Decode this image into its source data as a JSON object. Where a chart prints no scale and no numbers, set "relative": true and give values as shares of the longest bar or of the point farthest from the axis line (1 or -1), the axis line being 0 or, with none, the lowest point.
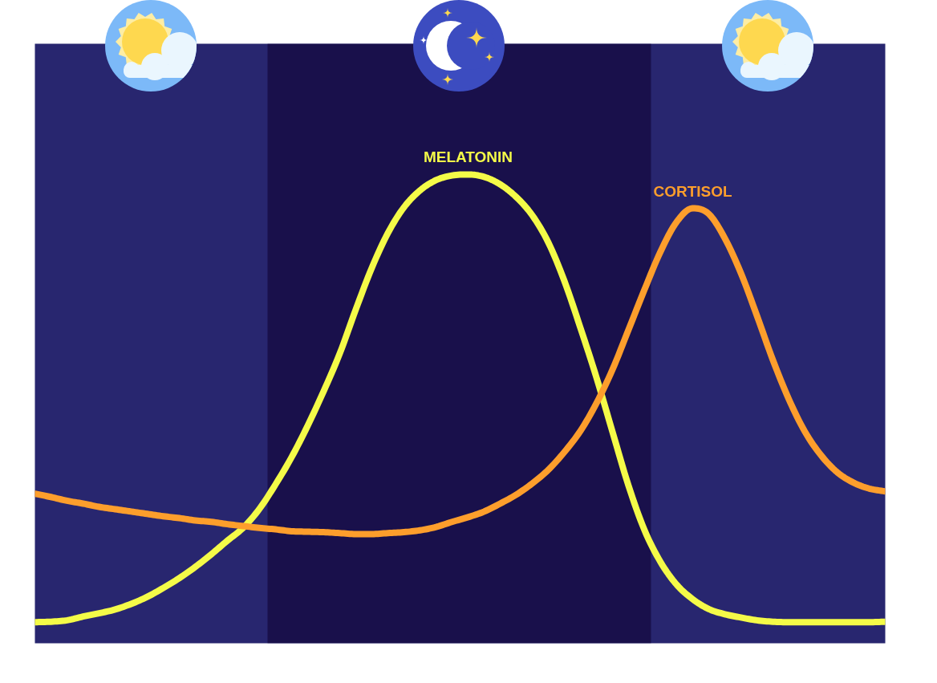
{
  "chart_data": {
    "type": "line",
    "relative": true,
    "tick_labels": false,
    "categories": [
      null,
      null,
      null,
      null,
      null,
      null,
      null,
      null,
      null,
      null,
      null,
      null,
      null,
      null,
      null,
      null,
      null,
      null,
      null,
      null,
      null,
      null,
      null,
      null,
      null,
      null,
      null,
      null,
      null,
      null,
      null,
      null,
      null,
      null,
      null,
      null,
      null,
      null,
      null,
      null,
      null,
      null,
      null,
      null,
      null,
      null,
      null,
      null,
      null,
      null,
      null,
      null,
      null,
      null
    ],
    "series": [
      {
        "name": "MELATONIN",
        "color": "#f4fb48",
        "values": [
          0.045,
          0.046,
          0.049,
          0.057,
          0.064,
          0.072,
          0.084,
          0.099,
          0.118,
          0.139,
          0.163,
          0.19,
          0.219,
          0.247,
          0.287,
          0.339,
          0.397,
          0.464,
          0.538,
          0.618,
          0.712,
          0.801,
          0.875,
          0.93,
          0.966,
          0.988,
          0.998,
          1.0,
          0.995,
          0.979,
          0.952,
          0.913,
          0.855,
          0.773,
          0.673,
          0.567,
          0.451,
          0.336,
          0.241,
          0.173,
          0.125,
          0.094,
          0.073,
          0.062,
          0.055,
          0.049,
          0.046,
          0.045,
          0.045,
          0.045,
          0.045,
          0.045,
          0.045,
          0.046
        ]
      },
      {
        "name": "CORTISOL",
        "color": "#fd9e2c",
        "values": [
          0.319,
          0.312,
          0.304,
          0.298,
          0.291,
          0.286,
          0.281,
          0.276,
          0.271,
          0.267,
          0.262,
          0.259,
          0.254,
          0.25,
          0.246,
          0.243,
          0.239,
          0.238,
          0.237,
          0.235,
          0.233,
          0.233,
          0.235,
          0.237,
          0.241,
          0.248,
          0.259,
          0.269,
          0.281,
          0.298,
          0.317,
          0.341,
          0.37,
          0.408,
          0.453,
          0.512,
          0.584,
          0.669,
          0.755,
          0.836,
          0.899,
          0.928,
          0.916,
          0.864,
          0.79,
          0.699,
          0.604,
          0.52,
          0.451,
          0.401,
          0.365,
          0.343,
          0.33,
          0.324
        ]
      }
    ]
  }
}
